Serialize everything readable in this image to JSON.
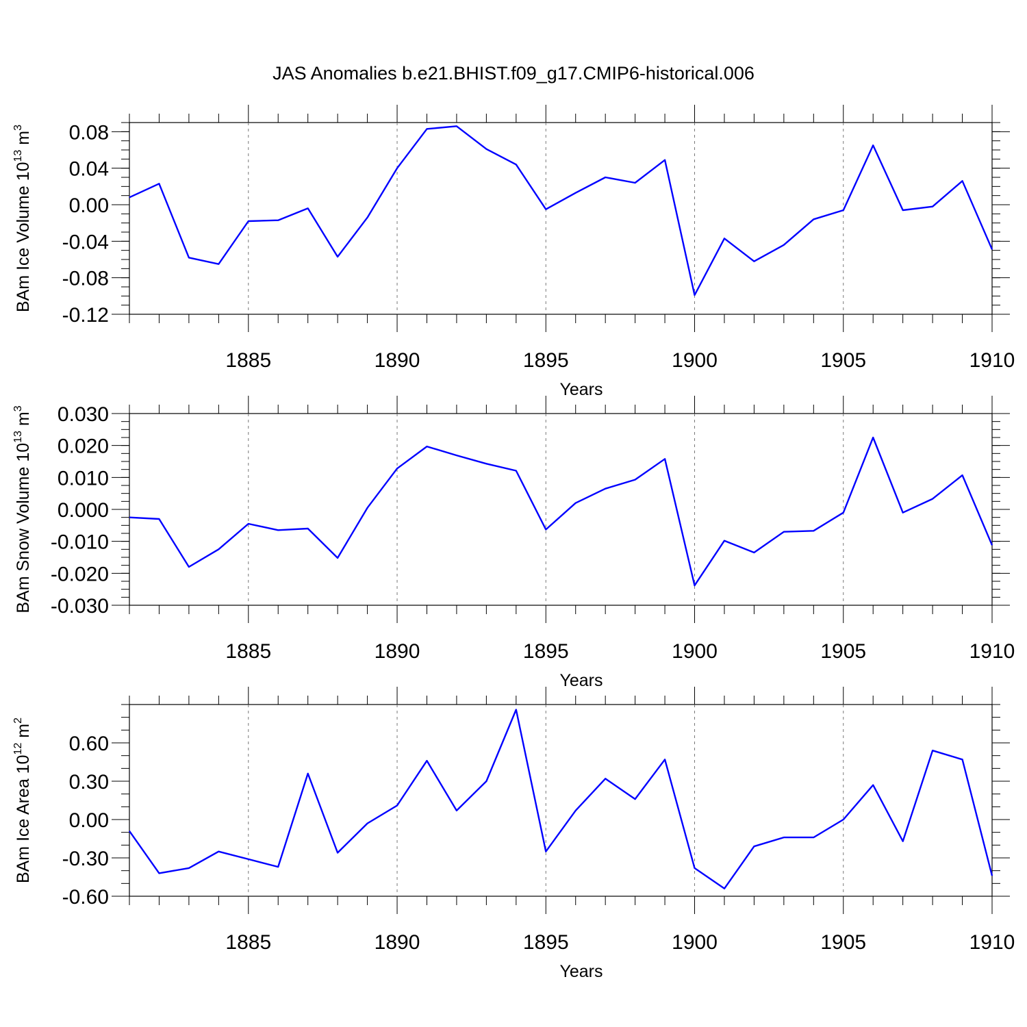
{
  "figure": {
    "title": "JAS Anomalies b.e21.BHIST.f09_g17.CMIP6-historical.006"
  },
  "chart_data": [
    {
      "type": "line",
      "ylabel": {
        "prefix": "BAm Ice Volume 10",
        "exp": "13",
        "unit": " m",
        "unit_exp": "3"
      },
      "xlabel": "Years",
      "xlim": [
        1881,
        1910
      ],
      "ylim": [
        -0.12,
        0.09
      ],
      "x_major_ticks": [
        1885,
        1890,
        1895,
        1900,
        1905,
        1910
      ],
      "y_major_ticks": [
        {
          "value": -0.12,
          "label": "-0.12"
        },
        {
          "value": -0.08,
          "label": "-0.08"
        },
        {
          "value": -0.04,
          "label": "-0.04"
        },
        {
          "value": 0.0,
          "label": "0.00"
        },
        {
          "value": 0.04,
          "label": "0.04"
        },
        {
          "value": 0.08,
          "label": "0.08"
        }
      ],
      "y_minor_step": 0.01,
      "color": "#0000ff",
      "x": [
        1881,
        1882,
        1883,
        1884,
        1885,
        1886,
        1887,
        1888,
        1889,
        1890,
        1891,
        1892,
        1893,
        1894,
        1895,
        1896,
        1897,
        1898,
        1899,
        1900,
        1901,
        1902,
        1903,
        1904,
        1905,
        1906,
        1907,
        1908,
        1909,
        1910
      ],
      "y": [
        0.008,
        0.023,
        -0.058,
        -0.065,
        -0.018,
        -0.017,
        -0.004,
        -0.057,
        -0.014,
        0.04,
        0.083,
        0.086,
        0.061,
        0.044,
        -0.005,
        0.013,
        0.03,
        0.024,
        0.049,
        -0.099,
        -0.037,
        -0.062,
        -0.044,
        -0.016,
        -0.006,
        0.065,
        -0.006,
        -0.002,
        0.026,
        -0.049
      ]
    },
    {
      "type": "line",
      "ylabel": {
        "prefix": "BAm Snow Volume 10",
        "exp": "13",
        "unit": " m",
        "unit_exp": "3"
      },
      "xlabel": "Years",
      "xlim": [
        1881,
        1910
      ],
      "ylim": [
        -0.03,
        0.03
      ],
      "x_major_ticks": [
        1885,
        1890,
        1895,
        1900,
        1905,
        1910
      ],
      "y_major_ticks": [
        {
          "value": -0.03,
          "label": "-0.030"
        },
        {
          "value": -0.02,
          "label": "-0.020"
        },
        {
          "value": -0.01,
          "label": "-0.010"
        },
        {
          "value": 0.0,
          "label": "0.000"
        },
        {
          "value": 0.01,
          "label": "0.010"
        },
        {
          "value": 0.02,
          "label": "0.020"
        },
        {
          "value": 0.03,
          "label": "0.030"
        }
      ],
      "y_minor_step": 0.0025,
      "color": "#0000ff",
      "x": [
        1881,
        1882,
        1883,
        1884,
        1885,
        1886,
        1887,
        1888,
        1889,
        1890,
        1891,
        1892,
        1893,
        1894,
        1895,
        1896,
        1897,
        1898,
        1899,
        1900,
        1901,
        1902,
        1903,
        1904,
        1905,
        1906,
        1907,
        1908,
        1909,
        1910
      ],
      "y": [
        -0.0025,
        -0.003,
        -0.018,
        -0.0125,
        -0.0045,
        -0.0065,
        -0.006,
        -0.0152,
        0.0005,
        0.0128,
        0.0197,
        0.0169,
        0.0143,
        0.0121,
        -0.0063,
        0.002,
        0.0065,
        0.0093,
        0.0158,
        -0.0238,
        -0.0098,
        -0.0135,
        -0.007,
        -0.0067,
        -0.001,
        0.0225,
        -0.001,
        0.0033,
        0.0107,
        -0.0112
      ]
    },
    {
      "type": "line",
      "ylabel": {
        "prefix": "BAm Ice Area 10",
        "exp": "12",
        "unit": " m",
        "unit_exp": "2"
      },
      "xlabel": "Years",
      "xlim": [
        1881,
        1910
      ],
      "ylim": [
        -0.6,
        0.9
      ],
      "x_major_ticks": [
        1885,
        1890,
        1895,
        1900,
        1905,
        1910
      ],
      "y_major_ticks": [
        {
          "value": -0.6,
          "label": "-0.60"
        },
        {
          "value": -0.3,
          "label": "-0.30"
        },
        {
          "value": 0.0,
          "label": "0.00"
        },
        {
          "value": 0.3,
          "label": "0.30"
        },
        {
          "value": 0.6,
          "label": "0.60"
        }
      ],
      "y_minor_step": 0.1,
      "color": "#0000ff",
      "x": [
        1881,
        1882,
        1883,
        1884,
        1885,
        1886,
        1887,
        1888,
        1889,
        1890,
        1891,
        1892,
        1893,
        1894,
        1895,
        1896,
        1897,
        1898,
        1899,
        1900,
        1901,
        1902,
        1903,
        1904,
        1905,
        1906,
        1907,
        1908,
        1909,
        1910
      ],
      "y": [
        -0.09,
        -0.42,
        -0.38,
        -0.25,
        -0.31,
        -0.37,
        0.36,
        -0.26,
        -0.03,
        0.11,
        0.46,
        0.07,
        0.3,
        0.86,
        -0.25,
        0.07,
        0.32,
        0.16,
        0.47,
        -0.38,
        -0.54,
        -0.21,
        -0.14,
        -0.14,
        0.0,
        0.27,
        -0.17,
        0.54,
        0.47,
        -0.44
      ]
    }
  ]
}
